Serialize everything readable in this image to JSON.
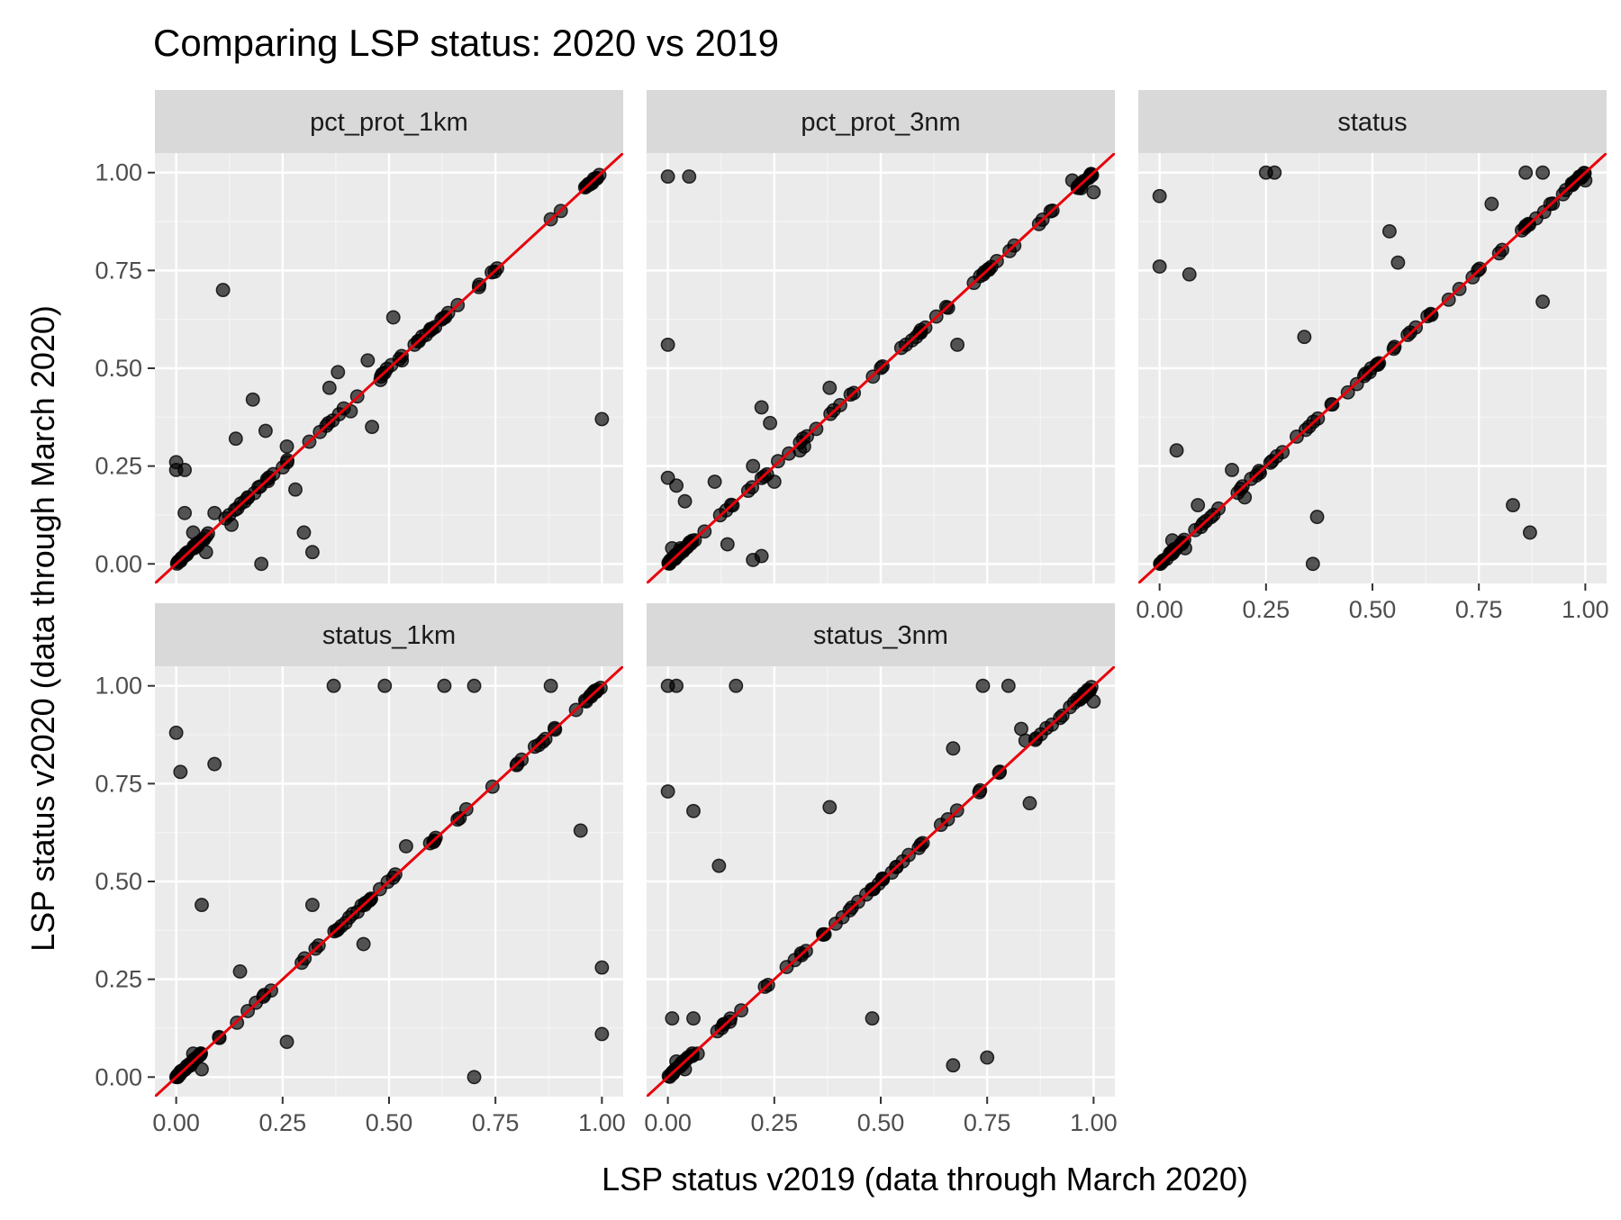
{
  "chart_data": {
    "type": "scatter",
    "title": "Comparing LSP status: 2020 vs 2019",
    "xlabel": "LSP status v2019 (data through March 2020)",
    "ylabel": "LSP status v2020 (data through March 2020)",
    "xlim": [
      0,
      1
    ],
    "ylim": [
      0,
      1
    ],
    "x_ticks": [
      "0.00",
      "0.25",
      "0.50",
      "0.75",
      "1.00"
    ],
    "y_ticks": [
      "0.00",
      "0.25",
      "0.50",
      "0.75",
      "1.00"
    ],
    "grid": true,
    "reference_line": {
      "slope": 1,
      "intercept": 0,
      "color": "#e8000b"
    },
    "point_color": "#000000",
    "point_alpha": 0.65,
    "panel_background": "#ebebeb",
    "strip_background": "#d9d9d9",
    "panels": [
      {
        "name": "pct_prot_1km",
        "outliers": [
          [
            0.0,
            0.26
          ],
          [
            0.0,
            0.24
          ],
          [
            0.02,
            0.24
          ],
          [
            0.02,
            0.13
          ],
          [
            0.04,
            0.08
          ],
          [
            0.07,
            0.03
          ],
          [
            0.09,
            0.13
          ],
          [
            0.11,
            0.7
          ],
          [
            0.13,
            0.1
          ],
          [
            0.14,
            0.32
          ],
          [
            0.18,
            0.42
          ],
          [
            0.2,
            0.0
          ],
          [
            0.21,
            0.34
          ],
          [
            0.26,
            0.3
          ],
          [
            0.28,
            0.19
          ],
          [
            0.3,
            0.08
          ],
          [
            0.32,
            0.03
          ],
          [
            0.36,
            0.45
          ],
          [
            0.38,
            0.49
          ],
          [
            0.41,
            0.39
          ],
          [
            0.45,
            0.52
          ],
          [
            0.46,
            0.35
          ],
          [
            0.48,
            0.47
          ],
          [
            0.51,
            0.63
          ],
          [
            0.53,
            0.52
          ],
          [
            0.56,
            0.56
          ],
          [
            1.0,
            0.37
          ]
        ]
      },
      {
        "name": "pct_prot_3nm",
        "outliers": [
          [
            0.0,
            0.99
          ],
          [
            0.05,
            0.99
          ],
          [
            0.0,
            0.56
          ],
          [
            0.0,
            0.22
          ],
          [
            0.02,
            0.2
          ],
          [
            0.04,
            0.16
          ],
          [
            0.01,
            0.04
          ],
          [
            0.03,
            0.04
          ],
          [
            0.11,
            0.21
          ],
          [
            0.14,
            0.05
          ],
          [
            0.2,
            0.01
          ],
          [
            0.22,
            0.02
          ],
          [
            0.2,
            0.25
          ],
          [
            0.22,
            0.4
          ],
          [
            0.24,
            0.36
          ],
          [
            0.25,
            0.21
          ],
          [
            0.32,
            0.3
          ],
          [
            0.31,
            0.29
          ],
          [
            0.38,
            0.45
          ],
          [
            0.68,
            0.56
          ],
          [
            0.95,
            0.98
          ],
          [
            1.0,
            0.95
          ],
          [
            0.97,
            0.96
          ]
        ]
      },
      {
        "name": "status",
        "outliers": [
          [
            0.0,
            0.94
          ],
          [
            0.0,
            0.76
          ],
          [
            0.07,
            0.74
          ],
          [
            0.04,
            0.29
          ],
          [
            0.03,
            0.06
          ],
          [
            0.06,
            0.04
          ],
          [
            0.09,
            0.15
          ],
          [
            0.17,
            0.24
          ],
          [
            0.2,
            0.17
          ],
          [
            0.25,
            1.0
          ],
          [
            0.27,
            1.0
          ],
          [
            0.34,
            0.58
          ],
          [
            0.36,
            0.0
          ],
          [
            0.37,
            0.12
          ],
          [
            0.54,
            0.85
          ],
          [
            0.56,
            0.77
          ],
          [
            0.78,
            0.92
          ],
          [
            0.83,
            0.15
          ],
          [
            0.86,
            1.0
          ],
          [
            0.87,
            0.08
          ],
          [
            0.9,
            1.0
          ],
          [
            0.9,
            0.67
          ],
          [
            1.0,
            0.98
          ]
        ]
      },
      {
        "name": "status_1km",
        "outliers": [
          [
            0.0,
            0.88
          ],
          [
            0.01,
            0.78
          ],
          [
            0.09,
            0.8
          ],
          [
            0.06,
            0.44
          ],
          [
            0.04,
            0.06
          ],
          [
            0.06,
            0.02
          ],
          [
            0.15,
            0.27
          ],
          [
            0.26,
            0.09
          ],
          [
            0.32,
            0.44
          ],
          [
            0.37,
            1.0
          ],
          [
            0.49,
            1.0
          ],
          [
            0.44,
            0.34
          ],
          [
            0.54,
            0.59
          ],
          [
            0.63,
            1.0
          ],
          [
            0.7,
            1.0
          ],
          [
            0.7,
            0.0
          ],
          [
            0.88,
            1.0
          ],
          [
            0.95,
            0.63
          ],
          [
            1.0,
            0.28
          ],
          [
            1.0,
            0.11
          ]
        ]
      },
      {
        "name": "status_3nm",
        "outliers": [
          [
            0.0,
            1.0
          ],
          [
            0.02,
            1.0
          ],
          [
            0.16,
            1.0
          ],
          [
            0.0,
            0.73
          ],
          [
            0.06,
            0.68
          ],
          [
            0.12,
            0.54
          ],
          [
            0.01,
            0.15
          ],
          [
            0.06,
            0.15
          ],
          [
            0.02,
            0.04
          ],
          [
            0.04,
            0.02
          ],
          [
            0.07,
            0.06
          ],
          [
            0.38,
            0.69
          ],
          [
            0.48,
            0.15
          ],
          [
            0.67,
            0.84
          ],
          [
            0.74,
            1.0
          ],
          [
            0.8,
            1.0
          ],
          [
            0.67,
            0.03
          ],
          [
            0.75,
            0.05
          ],
          [
            0.83,
            0.89
          ],
          [
            0.85,
            0.7
          ],
          [
            0.84,
            0.86
          ],
          [
            1.0,
            0.96
          ]
        ]
      }
    ]
  }
}
